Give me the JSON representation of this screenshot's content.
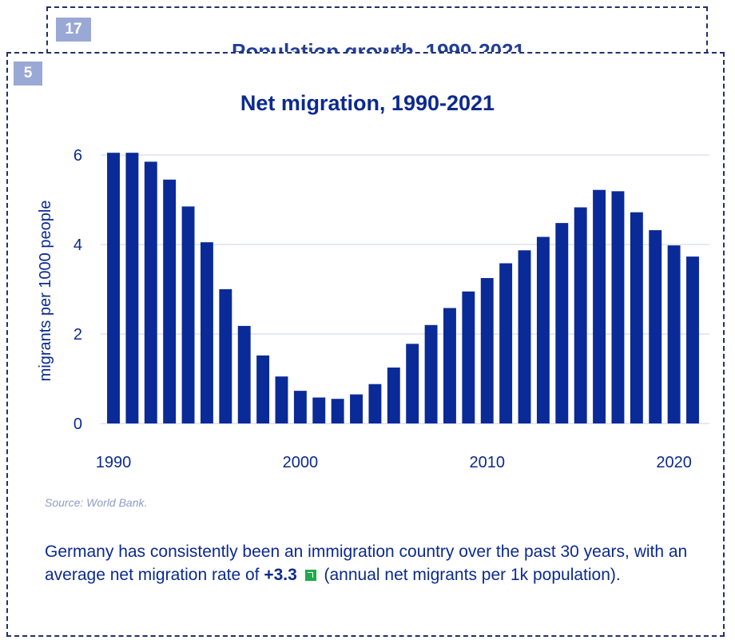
{
  "back_panel": {
    "badge": "17",
    "title": "Population growth, 1990-2021"
  },
  "front_panel": {
    "badge": "5"
  },
  "chart_data": {
    "type": "bar",
    "title": "Net migration, 1990-2021",
    "xlabel": "",
    "ylabel": "migrants per 1000 people",
    "x": [
      1990,
      1991,
      1992,
      1993,
      1994,
      1995,
      1996,
      1997,
      1998,
      1999,
      2000,
      2001,
      2002,
      2003,
      2004,
      2005,
      2006,
      2007,
      2008,
      2009,
      2010,
      2011,
      2012,
      2013,
      2014,
      2015,
      2016,
      2017,
      2018,
      2019,
      2020,
      2021
    ],
    "values": [
      6.05,
      6.05,
      5.85,
      5.45,
      4.85,
      4.05,
      3.0,
      2.18,
      1.52,
      1.05,
      0.73,
      0.58,
      0.55,
      0.65,
      0.88,
      1.25,
      1.78,
      2.2,
      2.58,
      2.95,
      3.25,
      3.58,
      3.87,
      4.17,
      4.48,
      4.83,
      5.22,
      5.19,
      4.72,
      4.32,
      3.98,
      3.73
    ],
    "ylim": [
      0,
      6.5
    ],
    "yticks": [
      0,
      2,
      4,
      6
    ],
    "xticks": [
      1990,
      2000,
      2010,
      2020
    ],
    "grid": true,
    "bar_color": "#0a2a97"
  },
  "source": "Source: World Bank.",
  "caption": {
    "part1": "Germany has consistently been an immigration country over the past 30 years, with an average net migration rate of",
    "value": "+3.3",
    "part2": "(annual net migrants per 1k population)."
  },
  "colors": {
    "accent": "#0b2a8f",
    "badge": "#9aa8d6",
    "trend_up": "#1faa4a"
  },
  "icons": {
    "trend": "trend-up-icon"
  }
}
